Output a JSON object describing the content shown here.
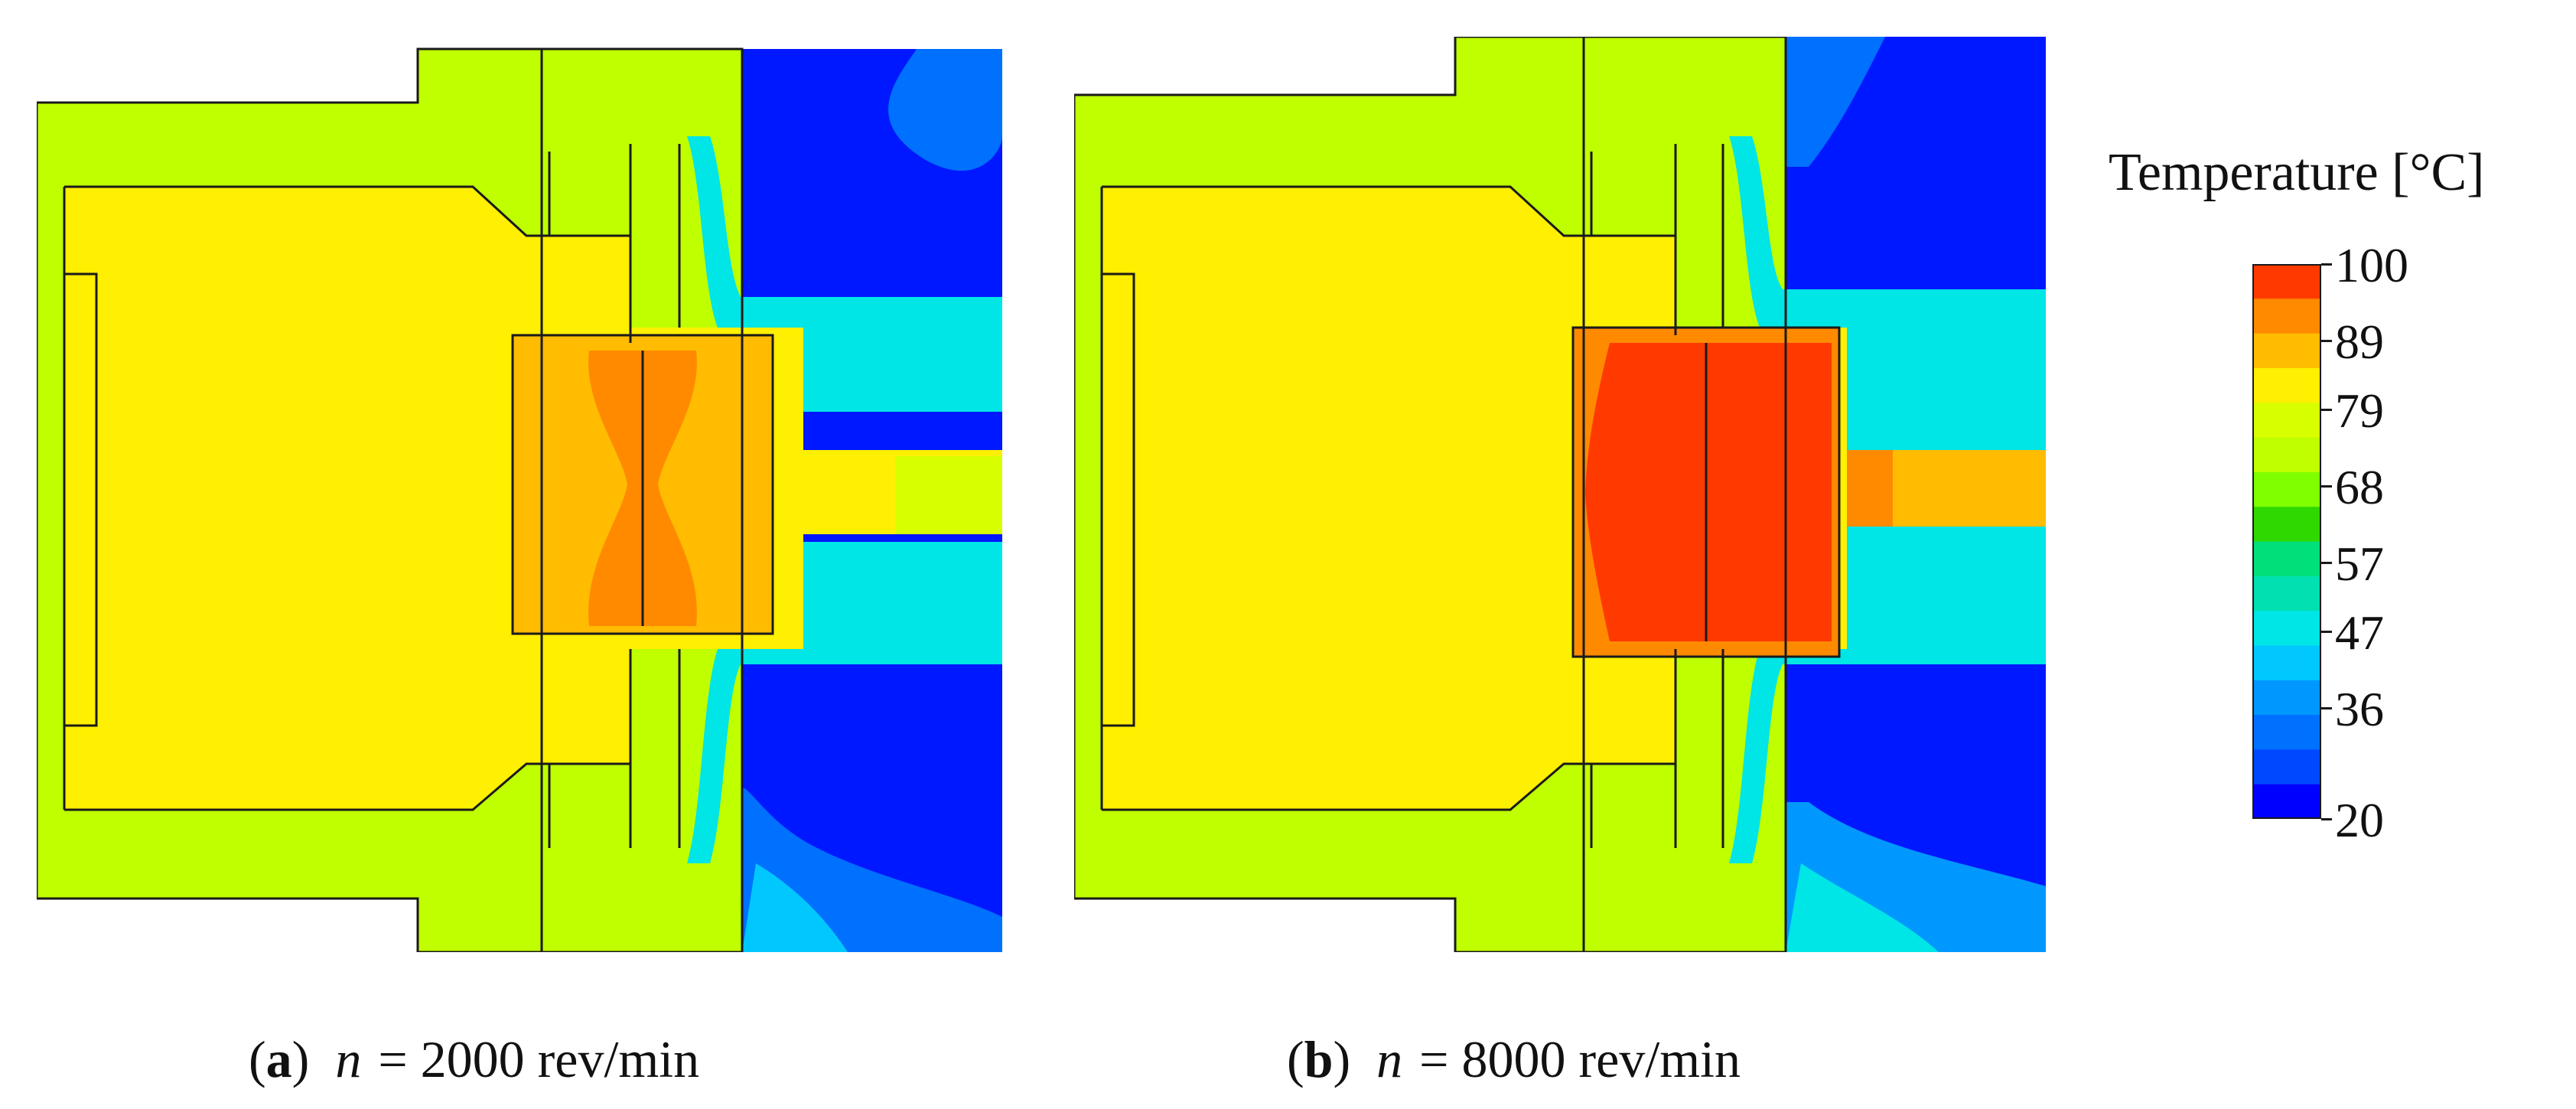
{
  "panels": [
    {
      "id": "a",
      "tag": "a",
      "symbol": "n",
      "text": "= 2000 rev/min"
    },
    {
      "id": "b",
      "tag": "b",
      "symbol": "n",
      "text": "= 8000 rev/min"
    }
  ],
  "legend": {
    "title": "Temperature [°C]",
    "ticks": [
      "100",
      "89",
      "79",
      "68",
      "57",
      "47",
      "36",
      "20"
    ],
    "tick_values": [
      100,
      89,
      79,
      68,
      57,
      47,
      36,
      20
    ],
    "range": [
      20,
      100
    ],
    "colors": [
      "#ff3a00",
      "#ff8a00",
      "#ffbc00",
      "#ffef00",
      "#d8ff00",
      "#bfff00",
      "#7fff00",
      "#2fd800",
      "#00e07a",
      "#00e0b0",
      "#00e5e5",
      "#00c8ff",
      "#0098ff",
      "#0070ff",
      "#0048ff",
      "#0000ff"
    ]
  },
  "field_colors": {
    "housing": "#bfff00",
    "rotor_shaft": "#ffef00",
    "bearing_a": "#ffbc00",
    "bearing_a_core": "#ff8a00",
    "bearing_b_outer": "#ff8a00",
    "bearing_b_core": "#ff3a00",
    "air_gap_edge": "#00e5e5",
    "ambient": "#0018ff",
    "ambient_mid": "#0070ff",
    "outline": "#1a1a1a"
  }
}
